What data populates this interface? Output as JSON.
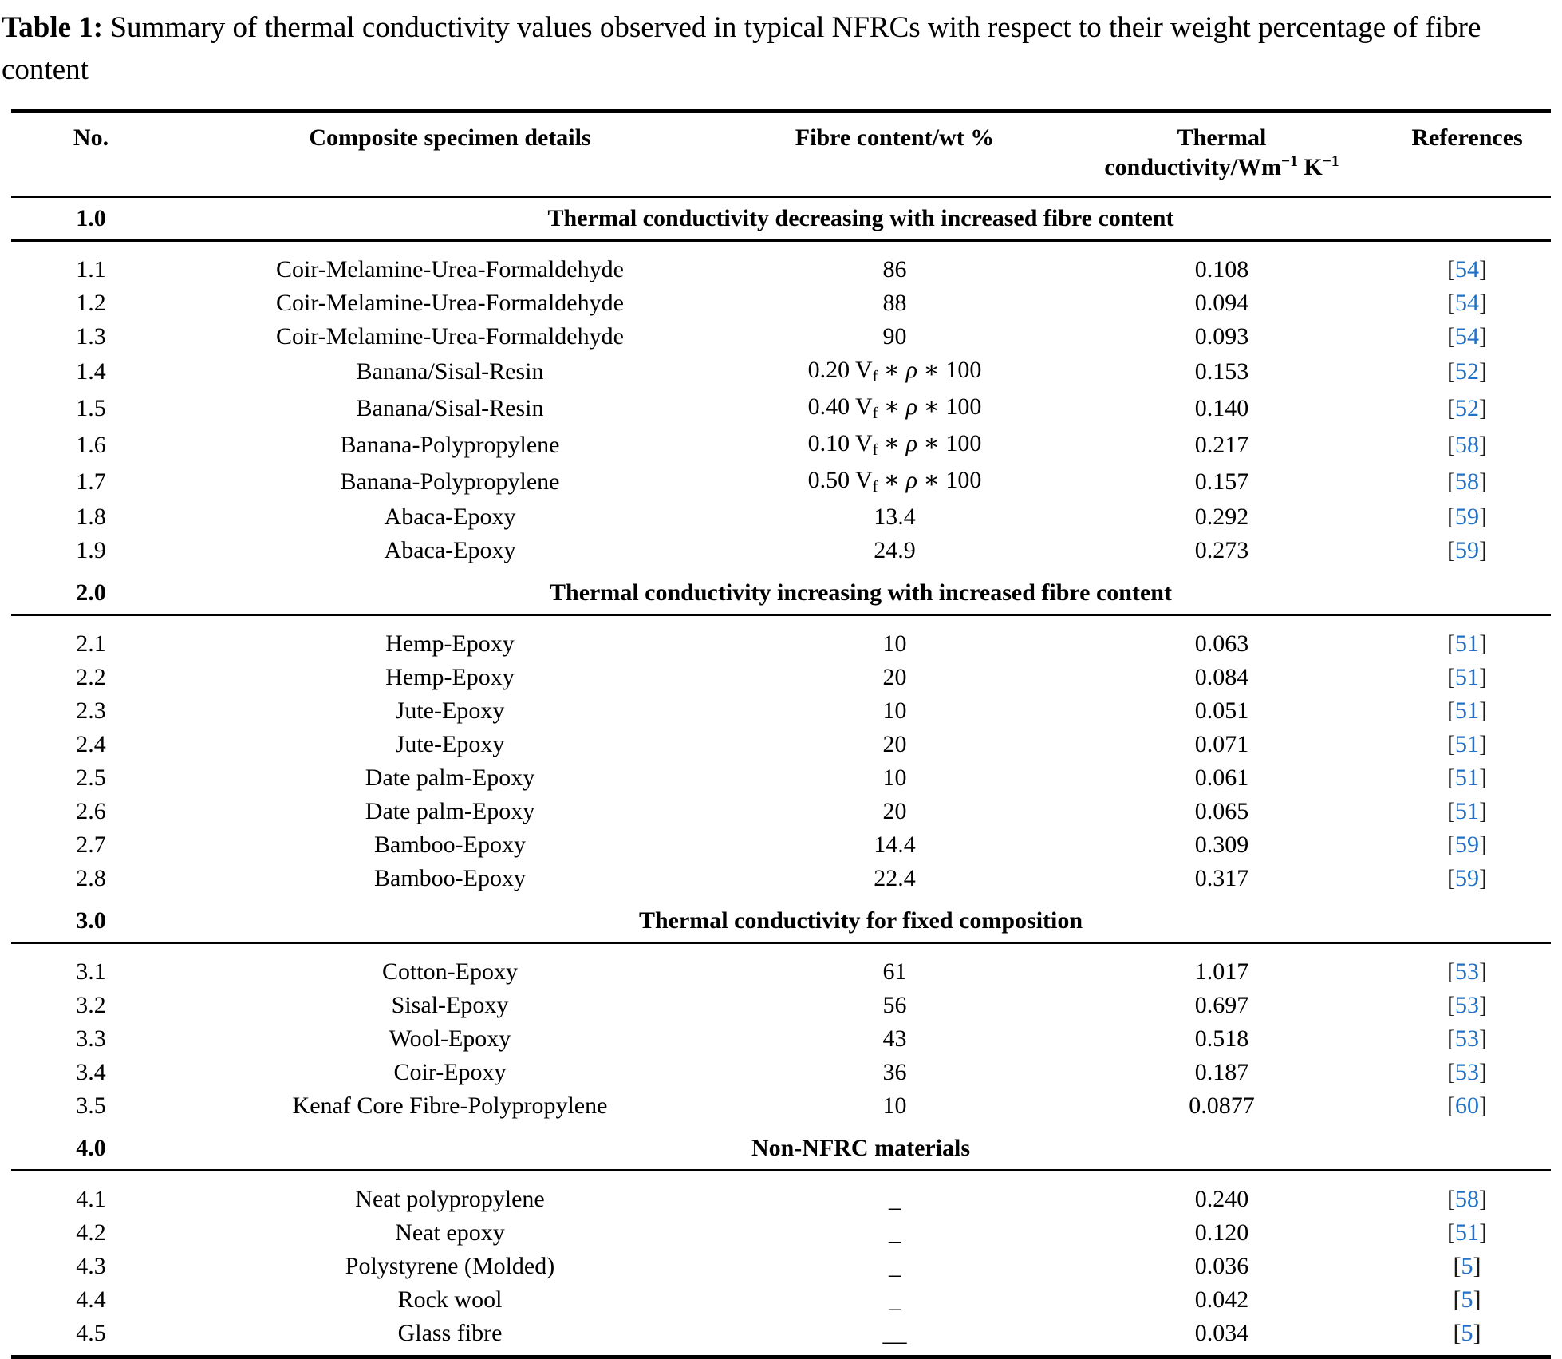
{
  "page": {
    "background": "#ffffff",
    "text_color": "#000000",
    "link_color": "#2171C6"
  },
  "caption": {
    "label": "Table 1:",
    "text": " Summary of thermal conductivity values observed in typical NFRCs with respect to their weight percentage of fibre content"
  },
  "table": {
    "ref_open": "[",
    "ref_close": "]",
    "columns": [
      {
        "id": "no",
        "label": [
          [
            {
              "t": "No."
            }
          ]
        ]
      },
      {
        "id": "specimen",
        "label": [
          [
            {
              "t": "Composite specimen details"
            }
          ]
        ]
      },
      {
        "id": "fibre",
        "label": [
          [
            {
              "t": "Fibre content/wt %"
            }
          ]
        ]
      },
      {
        "id": "conductivity",
        "label": [
          [
            {
              "t": "Thermal"
            }
          ],
          [
            {
              "t": "conductivity/Wm"
            },
            {
              "t": "−1",
              "style": "sup"
            },
            {
              "t": " K"
            },
            {
              "t": "−1",
              "style": "sup"
            }
          ]
        ]
      },
      {
        "id": "references",
        "label": [
          [
            {
              "t": "References"
            }
          ]
        ]
      }
    ],
    "sections": [
      {
        "no": "1.0",
        "title": "Thermal conductivity decreasing with increased fibre content",
        "rows": [
          {
            "no": "1.1",
            "specimen": "Coir-Melamine-Urea-Formaldehyde",
            "fibre": "86",
            "k": "0.108",
            "ref": "54"
          },
          {
            "no": "1.2",
            "specimen": "Coir-Melamine-Urea-Formaldehyde",
            "fibre": "88",
            "k": "0.094",
            "ref": "54"
          },
          {
            "no": "1.3",
            "specimen": "Coir-Melamine-Urea-Formaldehyde",
            "fibre": "90",
            "k": "0.093",
            "ref": "54"
          },
          {
            "no": "1.4",
            "specimen": "Banana/Sisal-Resin",
            "fibre": [
              {
                "t": "0.20 V"
              },
              {
                "t": "f",
                "style": "sub"
              },
              {
                "t": " ∗ "
              },
              {
                "t": "ρ",
                "style": "i"
              },
              {
                "t": " ∗ 100"
              }
            ],
            "k": "0.153",
            "ref": "52"
          },
          {
            "no": "1.5",
            "specimen": "Banana/Sisal-Resin",
            "fibre": [
              {
                "t": "0.40 V"
              },
              {
                "t": "f",
                "style": "sub"
              },
              {
                "t": " ∗ "
              },
              {
                "t": "ρ",
                "style": "i"
              },
              {
                "t": " ∗ 100"
              }
            ],
            "k": "0.140",
            "ref": "52"
          },
          {
            "no": "1.6",
            "specimen": "Banana-Polypropylene",
            "fibre": [
              {
                "t": "0.10 V"
              },
              {
                "t": "f",
                "style": "sub"
              },
              {
                "t": " ∗ "
              },
              {
                "t": "ρ",
                "style": "i"
              },
              {
                "t": " ∗ 100"
              }
            ],
            "k": "0.217",
            "ref": "58"
          },
          {
            "no": "1.7",
            "specimen": "Banana-Polypropylene",
            "fibre": [
              {
                "t": "0.50 V"
              },
              {
                "t": "f",
                "style": "sub"
              },
              {
                "t": " ∗ "
              },
              {
                "t": "ρ",
                "style": "i"
              },
              {
                "t": " ∗ 100"
              }
            ],
            "k": "0.157",
            "ref": "58"
          },
          {
            "no": "1.8",
            "specimen": "Abaca-Epoxy",
            "fibre": "13.4",
            "k": "0.292",
            "ref": "59"
          },
          {
            "no": "1.9",
            "specimen": "Abaca-Epoxy",
            "fibre": "24.9",
            "k": "0.273",
            "ref": "59"
          }
        ]
      },
      {
        "no": "2.0",
        "title": "Thermal conductivity increasing with increased fibre content",
        "rows": [
          {
            "no": "2.1",
            "specimen": "Hemp-Epoxy",
            "fibre": "10",
            "k": "0.063",
            "ref": "51"
          },
          {
            "no": "2.2",
            "specimen": "Hemp-Epoxy",
            "fibre": "20",
            "k": "0.084",
            "ref": "51"
          },
          {
            "no": "2.3",
            "specimen": "Jute-Epoxy",
            "fibre": "10",
            "k": "0.051",
            "ref": "51"
          },
          {
            "no": "2.4",
            "specimen": "Jute-Epoxy",
            "fibre": "20",
            "k": "0.071",
            "ref": "51"
          },
          {
            "no": "2.5",
            "specimen": "Date palm-Epoxy",
            "fibre": "10",
            "k": "0.061",
            "ref": "51"
          },
          {
            "no": "2.6",
            "specimen": "Date palm-Epoxy",
            "fibre": "20",
            "k": "0.065",
            "ref": "51"
          },
          {
            "no": "2.7",
            "specimen": "Bamboo-Epoxy",
            "fibre": "14.4",
            "k": "0.309",
            "ref": "59"
          },
          {
            "no": "2.8",
            "specimen": "Bamboo-Epoxy",
            "fibre": "22.4",
            "k": "0.317",
            "ref": "59"
          }
        ]
      },
      {
        "no": "3.0",
        "title": "Thermal conductivity for fixed composition",
        "rows": [
          {
            "no": "3.1",
            "specimen": "Cotton-Epoxy",
            "fibre": "61",
            "k": "1.017",
            "ref": "53"
          },
          {
            "no": "3.2",
            "specimen": "Sisal-Epoxy",
            "fibre": "56",
            "k": "0.697",
            "ref": "53"
          },
          {
            "no": "3.3",
            "specimen": "Wool-Epoxy",
            "fibre": "43",
            "k": "0.518",
            "ref": "53"
          },
          {
            "no": "3.4",
            "specimen": "Coir-Epoxy",
            "fibre": "36",
            "k": "0.187",
            "ref": "53"
          },
          {
            "no": "3.5",
            "specimen": "Kenaf Core Fibre-Polypropylene",
            "fibre": "10",
            "k": "0.0877",
            "ref": "60"
          }
        ]
      },
      {
        "no": "4.0",
        "title": "Non-NFRC materials",
        "rows": [
          {
            "no": "4.1",
            "specimen": "Neat polypropylene",
            "fibre": "_",
            "k": "0.240",
            "ref": "58"
          },
          {
            "no": "4.2",
            "specimen": "Neat epoxy",
            "fibre": "_",
            "k": "0.120",
            "ref": "51"
          },
          {
            "no": "4.3",
            "specimen": "Polystyrene (Molded)",
            "fibre": "_",
            "k": "0.036",
            "ref": "5"
          },
          {
            "no": "4.4",
            "specimen": "Rock wool",
            "fibre": "_",
            "k": "0.042",
            "ref": "5"
          },
          {
            "no": "4.5",
            "specimen": "Glass fibre",
            "fibre": "__",
            "k": "0.034",
            "ref": "5"
          }
        ]
      }
    ]
  }
}
